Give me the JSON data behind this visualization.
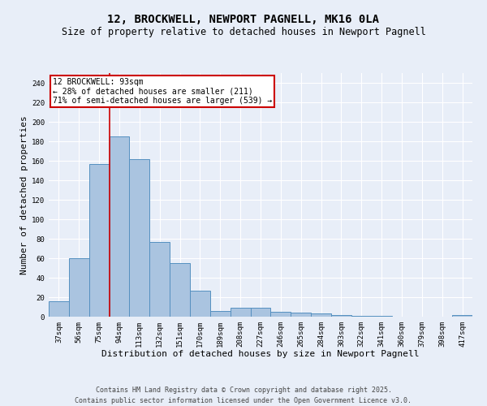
{
  "title1": "12, BROCKWELL, NEWPORT PAGNELL, MK16 0LA",
  "title2": "Size of property relative to detached houses in Newport Pagnell",
  "xlabel": "Distribution of detached houses by size in Newport Pagnell",
  "ylabel": "Number of detached properties",
  "categories": [
    "37sqm",
    "56sqm",
    "75sqm",
    "94sqm",
    "113sqm",
    "132sqm",
    "151sqm",
    "170sqm",
    "189sqm",
    "208sqm",
    "227sqm",
    "246sqm",
    "265sqm",
    "284sqm",
    "303sqm",
    "322sqm",
    "341sqm",
    "360sqm",
    "379sqm",
    "398sqm",
    "417sqm"
  ],
  "values": [
    16,
    60,
    157,
    185,
    162,
    77,
    55,
    27,
    6,
    9,
    9,
    5,
    4,
    3,
    2,
    1,
    1,
    0,
    0,
    0,
    2
  ],
  "bar_color": "#aac4e0",
  "bar_edge_color": "#5590c0",
  "red_line_index": 3,
  "annotation_title": "12 BROCKWELL: 93sqm",
  "annotation_line1": "← 28% of detached houses are smaller (211)",
  "annotation_line2": "71% of semi-detached houses are larger (539) →",
  "annotation_box_color": "#ffffff",
  "annotation_box_edge_color": "#cc0000",
  "ylim": [
    0,
    250
  ],
  "yticks": [
    0,
    20,
    40,
    60,
    80,
    100,
    120,
    140,
    160,
    180,
    200,
    220,
    240
  ],
  "footer1": "Contains HM Land Registry data © Crown copyright and database right 2025.",
  "footer2": "Contains public sector information licensed under the Open Government Licence v3.0.",
  "bg_color": "#e8eef8",
  "plot_bg_color": "#e8eef8",
  "title1_fontsize": 10,
  "title2_fontsize": 8.5,
  "tick_fontsize": 6.5,
  "label_fontsize": 8,
  "annotation_fontsize": 7,
  "footer_fontsize": 6
}
